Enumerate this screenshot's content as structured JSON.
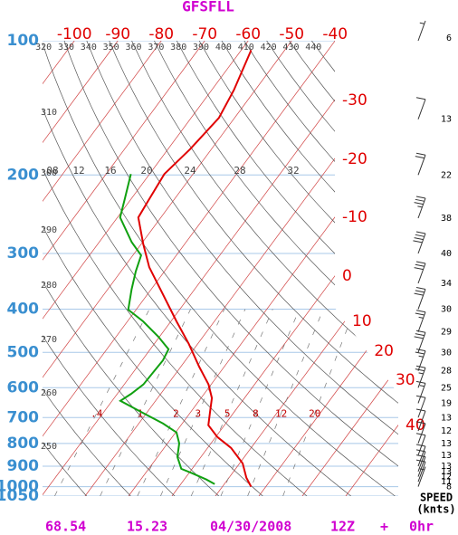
{
  "chart_data": {
    "type": "skewt",
    "title": "GFSFLL",
    "ylim": [
      100,
      1050
    ],
    "log_y": true,
    "yticks": [
      100,
      200,
      300,
      400,
      500,
      600,
      700,
      800,
      900,
      1000,
      1050
    ],
    "isotherms": [
      -100,
      -90,
      -80,
      -70,
      -60,
      -50,
      -40,
      -30,
      -20,
      -10,
      0,
      10,
      20,
      30,
      40
    ],
    "dry_adiabat_labels_top": [
      320,
      330,
      340,
      350,
      360,
      370,
      380,
      390,
      400,
      410,
      420,
      430,
      440
    ],
    "dry_adiabat_labels_left": [
      310,
      300,
      290,
      280,
      270,
      260,
      250
    ],
    "mixing_ratios": [
      {
        "value": 0.4,
        "label": ".4"
      },
      1,
      2,
      3,
      5,
      8,
      12,
      20
    ],
    "upper_scale": [
      {
        "value": 8,
        "label": "08"
      },
      12,
      16,
      20,
      24,
      28,
      32
    ],
    "series": [
      {
        "color": "#e00000",
        "x": [
          1000,
          955,
          887,
          819,
          774,
          728,
          679,
          633,
          590,
          538,
          478,
          426,
          370,
          322,
          286,
          249,
          227,
          199,
          175,
          149,
          129,
          105
        ],
        "values": [
          16.6,
          14.0,
          10.7,
          5.4,
          0.4,
          -3.7,
          -5.6,
          -7.5,
          -10.6,
          -15.8,
          -22.1,
          -28.7,
          -36.5,
          -44.2,
          -49.5,
          -55.2,
          -55.8,
          -56.6,
          -54.9,
          -53.6,
          -54.9,
          -57.7
        ]
      },
      {
        "color": "#10a010",
        "x": [
          987,
          964,
          933,
          912,
          858,
          800,
          756,
          722,
          679,
          642,
          619,
          590,
          551,
          521,
          492,
          461,
          426,
          401,
          361,
          329,
          303,
          283,
          249,
          227,
          199
        ],
        "values": [
          7.8,
          5.1,
          0.7,
          -2.5,
          -5.4,
          -7.3,
          -9.8,
          -14.4,
          -21.6,
          -28.1,
          -26.8,
          -25.6,
          -25.4,
          -25.2,
          -25.8,
          -30.3,
          -36.4,
          -41.8,
          -44.5,
          -46.6,
          -48.1,
          -52.5,
          -59.4,
          -61.4,
          -64.3
        ]
      }
    ],
    "wind": {
      "x": [
        100,
        150,
        200,
        250,
        300,
        350,
        400,
        450,
        500,
        550,
        600,
        650,
        700,
        750,
        800,
        850,
        900,
        925,
        950,
        975,
        1000
      ],
      "speed": [
        6,
        13,
        22,
        38,
        40,
        34,
        30,
        29,
        30,
        28,
        25,
        19,
        13,
        12,
        13,
        13,
        13,
        13,
        12,
        11,
        8
      ]
    },
    "wind_label": "SPEED",
    "wind_unit": "(knts)",
    "footer": [
      "68.54",
      "15.23",
      "04/30/2008",
      "12Z",
      "+",
      "0hr"
    ]
  }
}
